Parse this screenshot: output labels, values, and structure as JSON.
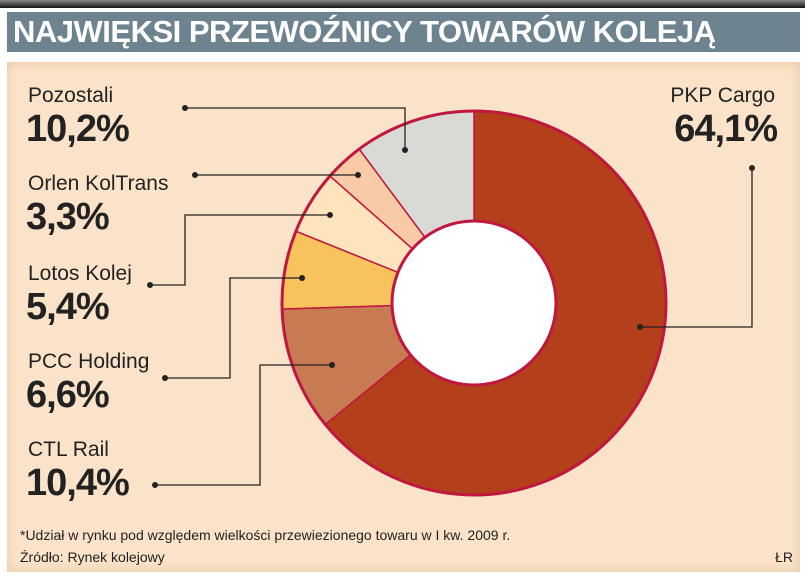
{
  "chart_data": {
    "type": "pie",
    "donut": true,
    "title": "NAJWIĘKSI PRZEWOŹNICY TOWARÓW KOLEJĄ",
    "slices": [
      {
        "label": "PKP Cargo",
        "value": 64.1,
        "display": "64,1%",
        "color": "#b3401b"
      },
      {
        "label": "CTL Rail",
        "value": 10.4,
        "display": "10,4%",
        "color": "#c87a53"
      },
      {
        "label": "PCC Holding",
        "value": 6.6,
        "display": "6,6%",
        "color": "#f8c35c"
      },
      {
        "label": "Lotos Kolej",
        "value": 5.4,
        "display": "5,4%",
        "color": "#fde4bd"
      },
      {
        "label": "Orlen KolTrans",
        "value": 3.3,
        "display": "3,3%",
        "color": "#f8cba6"
      },
      {
        "label": "Pozostali",
        "value": 10.2,
        "display": "10,2%",
        "color": "#d9d9d6"
      }
    ],
    "outline_color": "#c0173e",
    "footnote": "*Udział w rynku pod względem wielkości przewiezionego towaru w I kw. 2009 r.",
    "source": "Źródło: Rynek kolejowy",
    "credit": "ŁR"
  }
}
